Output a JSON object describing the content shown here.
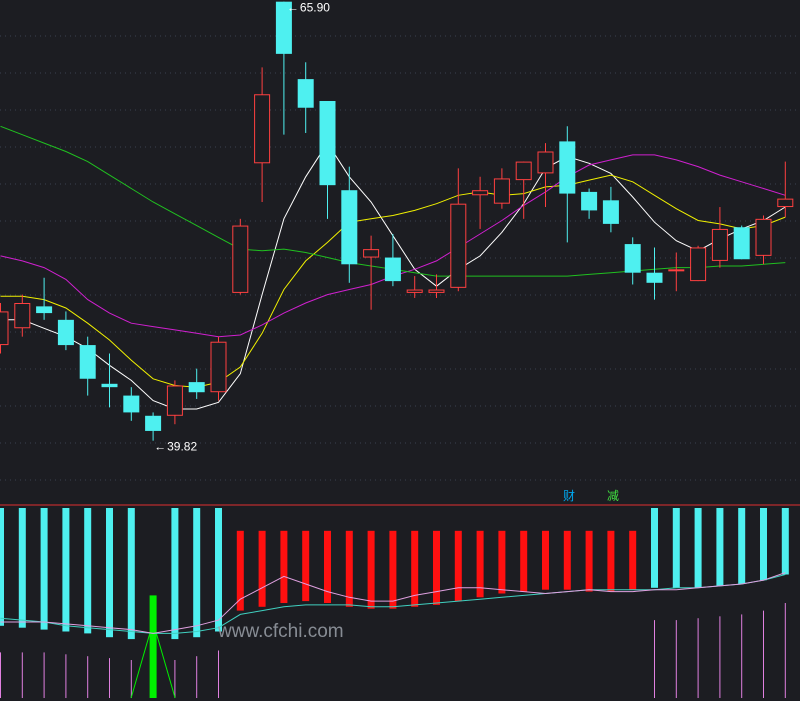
{
  "chart_data": [
    {
      "type": "candlestick",
      "y_range": [
        36,
        66
      ],
      "high_label": "65.90",
      "low_label": "39.82",
      "candles": [
        {
          "o": 45.5,
          "c": 47.5,
          "h": 48.0,
          "l": 45.0
        },
        {
          "o": 46.5,
          "c": 48.0,
          "h": 48.5,
          "l": 46.0
        },
        {
          "o": 47.8,
          "c": 47.4,
          "h": 49.5,
          "l": 47.0
        },
        {
          "o": 47.0,
          "c": 45.5,
          "h": 47.5,
          "l": 45.2
        },
        {
          "o": 45.5,
          "c": 43.5,
          "h": 46.0,
          "l": 42.5
        },
        {
          "o": 43.2,
          "c": 43.0,
          "h": 45.0,
          "l": 41.8
        },
        {
          "o": 42.5,
          "c": 41.5,
          "h": 43.0,
          "l": 41.0
        },
        {
          "o": 41.3,
          "c": 40.4,
          "h": 41.5,
          "l": 39.82
        },
        {
          "o": 41.3,
          "c": 43.1,
          "h": 43.4,
          "l": 40.8
        },
        {
          "o": 43.3,
          "c": 42.7,
          "h": 44.1,
          "l": 42.3
        },
        {
          "o": 42.7,
          "c": 45.7,
          "h": 46.0,
          "l": 42.2
        },
        {
          "o": 48.6,
          "c": 52.6,
          "h": 53.0,
          "l": 48.5
        },
        {
          "o": 56.3,
          "c": 60.4,
          "h": 62.0,
          "l": 54.0
        },
        {
          "o": 65.9,
          "c": 62.8,
          "h": 65.9,
          "l": 58.0
        },
        {
          "o": 61.3,
          "c": 59.6,
          "h": 62.3,
          "l": 58.1
        },
        {
          "o": 60.0,
          "c": 55.0,
          "h": 60.0,
          "l": 53.0
        },
        {
          "o": 54.7,
          "c": 50.3,
          "h": 56.1,
          "l": 49.2
        },
        {
          "o": 50.7,
          "c": 51.2,
          "h": 52.0,
          "l": 47.6
        },
        {
          "o": 50.7,
          "c": 49.3,
          "h": 52.1,
          "l": 49.0
        },
        {
          "o": 48.6,
          "c": 48.8,
          "h": 49.6,
          "l": 48.3
        },
        {
          "o": 48.6,
          "c": 48.8,
          "h": 49.7,
          "l": 48.3
        },
        {
          "o": 48.9,
          "c": 53.9,
          "h": 56.0,
          "l": 48.7
        },
        {
          "o": 54.4,
          "c": 54.7,
          "h": 55.5,
          "l": 52.4
        },
        {
          "o": 53.9,
          "c": 55.4,
          "h": 56.0,
          "l": 53.6
        },
        {
          "o": 55.3,
          "c": 56.4,
          "h": 56.4,
          "l": 53.0
        },
        {
          "o": 55.7,
          "c": 57.0,
          "h": 57.5,
          "l": 53.7
        },
        {
          "o": 57.6,
          "c": 54.5,
          "h": 58.5,
          "l": 51.6
        },
        {
          "o": 54.6,
          "c": 53.5,
          "h": 54.8,
          "l": 53.0
        },
        {
          "o": 54.1,
          "c": 52.7,
          "h": 54.9,
          "l": 52.2
        },
        {
          "o": 51.5,
          "c": 49.8,
          "h": 51.9,
          "l": 49.1
        },
        {
          "o": 49.8,
          "c": 49.2,
          "h": 51.3,
          "l": 48.2
        },
        {
          "o": 49.9,
          "c": 50.0,
          "h": 51.0,
          "l": 48.7
        },
        {
          "o": 49.3,
          "c": 51.3,
          "h": 51.4,
          "l": 49.3
        },
        {
          "o": 50.5,
          "c": 52.4,
          "h": 53.7,
          "l": 50.1
        },
        {
          "o": 52.5,
          "c": 50.6,
          "h": 52.6,
          "l": 50.6
        },
        {
          "o": 50.8,
          "c": 53.0,
          "h": 53.2,
          "l": 50.3
        },
        {
          "o": 53.7,
          "c": 54.2,
          "h": 56.4,
          "l": 53.1
        }
      ],
      "series": [
        {
          "color": "#ffffff",
          "values": [
            47.0,
            47.0,
            46.5,
            46.0,
            45.3,
            44.3,
            43.4,
            42.2,
            41.7,
            41.7,
            42.1,
            43.8,
            48.5,
            53.0,
            55.5,
            57.5,
            55.5,
            54.0,
            52.0,
            50.0,
            49.0,
            50.0,
            50.8,
            52.2,
            53.9,
            56.0,
            56.7,
            56.3,
            55.7,
            54.3,
            52.8,
            51.7,
            51.1,
            51.8,
            52.4,
            52.9,
            53.7
          ]
        },
        {
          "color": "#f0f000",
          "values": [
            48.4,
            48.4,
            48.2,
            47.7,
            46.8,
            45.8,
            44.6,
            43.5,
            43.1,
            43.0,
            43.3,
            44.2,
            46.2,
            48.8,
            50.5,
            51.6,
            52.8,
            53.0,
            53.2,
            53.5,
            53.9,
            54.4,
            54.6,
            54.4,
            54.5,
            54.9,
            55.0,
            55.3,
            55.6,
            55.2,
            54.4,
            53.6,
            52.9,
            52.7,
            52.4,
            52.6,
            53.1
          ]
        },
        {
          "color": "#d020d0",
          "values": [
            50.8,
            50.5,
            50.1,
            49.4,
            48.2,
            47.4,
            46.8,
            46.6,
            46.4,
            46.2,
            46.0,
            46.1,
            46.7,
            47.4,
            48.0,
            48.5,
            48.8,
            49.1,
            49.6,
            50.0,
            50.5,
            51.3,
            52.1,
            52.9,
            53.8,
            54.6,
            55.5,
            56.2,
            56.5,
            56.8,
            56.8,
            56.5,
            56.1,
            55.6,
            55.2,
            54.8,
            54.4
          ]
        },
        {
          "color": "#20c020",
          "values": [
            58.5,
            58.0,
            57.5,
            57.0,
            56.4,
            55.6,
            54.8,
            54.0,
            53.3,
            52.6,
            51.9,
            51.2,
            51.1,
            51.2,
            51.0,
            50.7,
            50.4,
            50.2,
            50.0,
            49.8,
            49.6,
            49.6,
            49.6,
            49.6,
            49.6,
            49.6,
            49.6,
            49.7,
            49.8,
            49.9,
            50.0,
            50.1,
            50.1,
            50.2,
            50.2,
            50.3,
            50.4
          ]
        }
      ],
      "markers": [
        {
          "text": "财",
          "color": "#00a8f0"
        },
        {
          "text": "减",
          "color": "#40e040"
        }
      ]
    },
    {
      "type": "bar",
      "y_range": [
        0,
        100
      ],
      "bars": [
        {
          "color": "#4ef0f0",
          "from": 100,
          "to": 38
        },
        {
          "color": "#4ef0f0",
          "from": 100,
          "to": 37
        },
        {
          "color": "#4ef0f0",
          "from": 100,
          "to": 36
        },
        {
          "color": "#4ef0f0",
          "from": 100,
          "to": 35
        },
        {
          "color": "#4ef0f0",
          "from": 100,
          "to": 34
        },
        {
          "color": "#4ef0f0",
          "from": 100,
          "to": 32
        },
        {
          "color": "#4ef0f0",
          "from": 100,
          "to": 31
        },
        {
          "color": "#00f000",
          "from": 0,
          "to": 54
        },
        {
          "color": "#4ef0f0",
          "from": 100,
          "to": 31
        },
        {
          "color": "#4ef0f0",
          "from": 100,
          "to": 32
        },
        {
          "color": "#4ef0f0",
          "from": 100,
          "to": 35
        },
        {
          "color": "#ff1010",
          "from": 88,
          "to": 46
        },
        {
          "color": "#ff1010",
          "from": 88,
          "to": 48
        },
        {
          "color": "#ff1010",
          "from": 88,
          "to": 50
        },
        {
          "color": "#ff1010",
          "from": 88,
          "to": 51
        },
        {
          "color": "#ff1010",
          "from": 88,
          "to": 50
        },
        {
          "color": "#ff1010",
          "from": 88,
          "to": 48
        },
        {
          "color": "#ff1010",
          "from": 88,
          "to": 47
        },
        {
          "color": "#ff1010",
          "from": 88,
          "to": 47
        },
        {
          "color": "#ff1010",
          "from": 88,
          "to": 48
        },
        {
          "color": "#ff1010",
          "from": 88,
          "to": 49
        },
        {
          "color": "#ff1010",
          "from": 88,
          "to": 51
        },
        {
          "color": "#ff1010",
          "from": 88,
          "to": 53
        },
        {
          "color": "#ff1010",
          "from": 88,
          "to": 55
        },
        {
          "color": "#ff1010",
          "from": 88,
          "to": 56
        },
        {
          "color": "#ff1010",
          "from": 88,
          "to": 57
        },
        {
          "color": "#ff1010",
          "from": 88,
          "to": 57
        },
        {
          "color": "#ff1010",
          "from": 88,
          "to": 56
        },
        {
          "color": "#ff1010",
          "from": 88,
          "to": 56
        },
        {
          "color": "#ff1010",
          "from": 88,
          "to": 57
        },
        {
          "color": "#4ef0f0",
          "from": 100,
          "to": 58
        },
        {
          "color": "#4ef0f0",
          "from": 100,
          "to": 58
        },
        {
          "color": "#4ef0f0",
          "from": 100,
          "to": 58
        },
        {
          "color": "#4ef0f0",
          "from": 100,
          "to": 59
        },
        {
          "color": "#4ef0f0",
          "from": 100,
          "to": 60
        },
        {
          "color": "#4ef0f0",
          "from": 100,
          "to": 62
        },
        {
          "color": "#4ef0f0",
          "from": 100,
          "to": 65
        }
      ],
      "lines": [
        {
          "color": "#40d0c0",
          "values": [
            42,
            41,
            40,
            38,
            37,
            36,
            35,
            34,
            34,
            35,
            37,
            44,
            46,
            48,
            49,
            49,
            49,
            48,
            48,
            49,
            50,
            51,
            52,
            53,
            54,
            55,
            56,
            57,
            57,
            57,
            57,
            58,
            58,
            59,
            60,
            62,
            65
          ]
        },
        {
          "color": "#e0a0e0",
          "values": [
            40,
            40,
            40,
            39,
            38,
            37,
            36,
            34,
            36,
            38,
            41,
            52,
            58,
            64,
            60,
            56,
            53,
            51,
            51,
            54,
            56,
            58,
            58,
            57,
            56,
            55,
            56,
            57,
            56,
            56,
            57,
            57,
            58,
            59,
            60,
            62,
            66
          ]
        }
      ],
      "lower_bands_color": "#e080e0",
      "watermark": "www.cfchi.com"
    }
  ]
}
